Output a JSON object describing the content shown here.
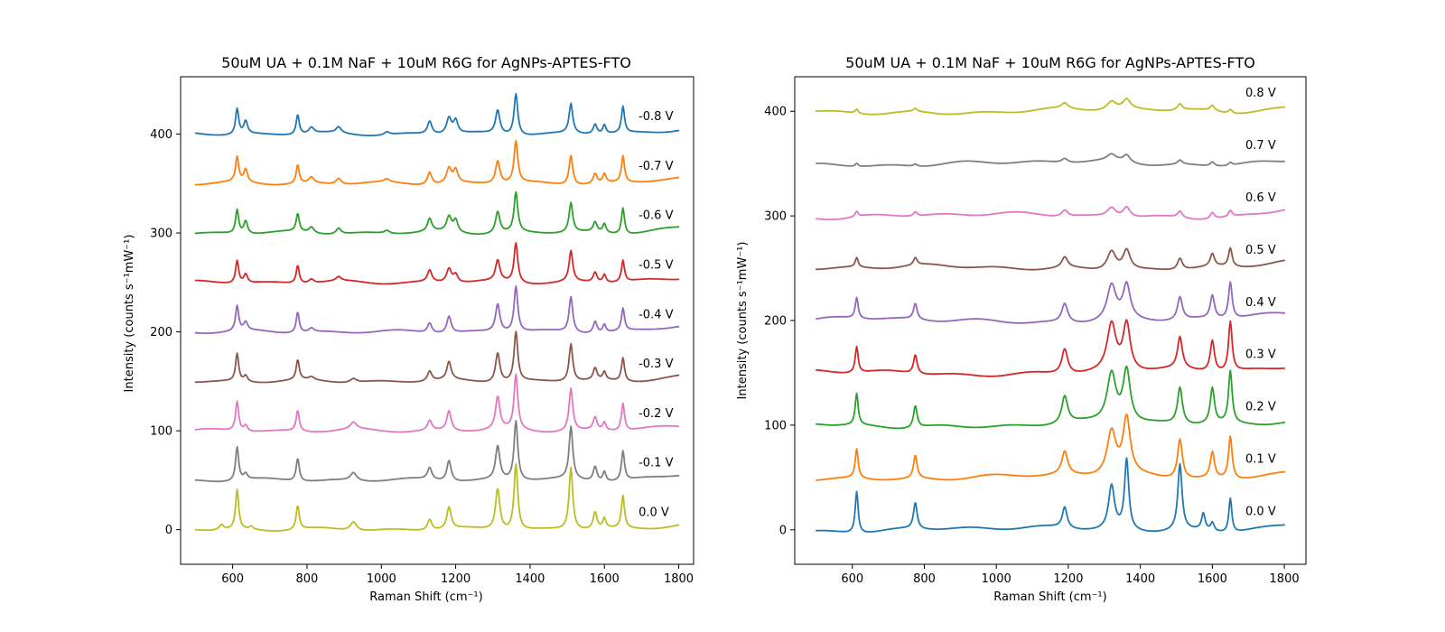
{
  "chart_data": [
    {
      "type": "line",
      "title": "50uM UA + 0.1M NaF + 10uM R6G for AgNPs-APTES-FTO",
      "xlabel": "Raman Shift (cm⁻¹)",
      "ylabel": "Intensity (counts s⁻¹mW⁻¹)",
      "xlim": [
        460,
        1840
      ],
      "ylim": [
        -35,
        458
      ],
      "xticks": [
        "600",
        "800",
        "1000",
        "1200",
        "1400",
        "1600",
        "1800"
      ],
      "yticks": [
        "0",
        "100",
        "200",
        "300",
        "400"
      ],
      "grid": false,
      "series": [
        {
          "name": "-0.8 V",
          "offset": 400,
          "color": "#1f77b4",
          "peaks": [
            [
              612,
              26,
              5
            ],
            [
              635,
              13,
              6
            ],
            [
              775,
              20,
              5
            ],
            [
              812,
              6,
              8
            ],
            [
              885,
              6,
              8
            ],
            [
              1015,
              3,
              8
            ],
            [
              1130,
              13,
              7
            ],
            [
              1182,
              16,
              8
            ],
            [
              1200,
              13,
              7
            ],
            [
              1313,
              24,
              7
            ],
            [
              1362,
              42,
              6
            ],
            [
              1510,
              30,
              6
            ],
            [
              1575,
              10,
              6
            ],
            [
              1600,
              9,
              5
            ],
            [
              1650,
              27,
              5
            ]
          ]
        },
        {
          "name": "-0.7 V",
          "offset": 350,
          "color": "#ff7f0e",
          "peaks": [
            [
              612,
              25,
              5
            ],
            [
              635,
              13,
              6
            ],
            [
              775,
              19,
              5
            ],
            [
              812,
              6,
              8
            ],
            [
              885,
              6,
              8
            ],
            [
              1015,
              3,
              8
            ],
            [
              1130,
              13,
              7
            ],
            [
              1182,
              15,
              8
            ],
            [
              1200,
              13,
              7
            ],
            [
              1313,
              23,
              7
            ],
            [
              1362,
              42,
              6
            ],
            [
              1510,
              30,
              6
            ],
            [
              1575,
              10,
              6
            ],
            [
              1600,
              9,
              5
            ],
            [
              1650,
              27,
              5
            ]
          ]
        },
        {
          "name": "-0.6 V",
          "offset": 300,
          "color": "#2ca02c",
          "peaks": [
            [
              612,
              24,
              5
            ],
            [
              635,
              13,
              6
            ],
            [
              775,
              18,
              5
            ],
            [
              812,
              6,
              8
            ],
            [
              885,
              6,
              8
            ],
            [
              1015,
              3,
              8
            ],
            [
              1130,
              13,
              7
            ],
            [
              1182,
              15,
              8
            ],
            [
              1200,
              12,
              7
            ],
            [
              1313,
              22,
              7
            ],
            [
              1362,
              40,
              6
            ],
            [
              1510,
              30,
              6
            ],
            [
              1575,
              10,
              6
            ],
            [
              1600,
              9,
              5
            ],
            [
              1650,
              27,
              5
            ]
          ]
        },
        {
          "name": "-0.5 V",
          "offset": 250,
          "color": "#d62728",
          "peaks": [
            [
              612,
              23,
              5
            ],
            [
              635,
              9,
              6
            ],
            [
              775,
              18,
              5
            ],
            [
              812,
              4,
              8
            ],
            [
              885,
              4,
              8
            ],
            [
              1130,
              12,
              7
            ],
            [
              1182,
              14,
              8
            ],
            [
              1200,
              8,
              7
            ],
            [
              1313,
              21,
              7
            ],
            [
              1362,
              40,
              6
            ],
            [
              1510,
              31,
              6
            ],
            [
              1575,
              10,
              6
            ],
            [
              1600,
              8,
              5
            ],
            [
              1650,
              22,
              5
            ]
          ]
        },
        {
          "name": "-0.4 V",
          "offset": 200,
          "color": "#9467bd",
          "peaks": [
            [
              612,
              25,
              5
            ],
            [
              635,
              8,
              6
            ],
            [
              775,
              21,
              5
            ],
            [
              812,
              4,
              8
            ],
            [
              1130,
              10,
              7
            ],
            [
              1182,
              17,
              7
            ],
            [
              1313,
              28,
              7
            ],
            [
              1362,
              46,
              6
            ],
            [
              1510,
              36,
              6
            ],
            [
              1575,
              12,
              6
            ],
            [
              1600,
              8,
              5
            ],
            [
              1650,
              23,
              5
            ]
          ]
        },
        {
          "name": "-0.3 V",
          "offset": 150,
          "color": "#8c564b",
          "peaks": [
            [
              612,
              28,
              5
            ],
            [
              635,
              6,
              6
            ],
            [
              775,
              20,
              5
            ],
            [
              812,
              3,
              8
            ],
            [
              925,
              4,
              10
            ],
            [
              1130,
              10,
              7
            ],
            [
              1182,
              18,
              7
            ],
            [
              1313,
              30,
              7
            ],
            [
              1362,
              50,
              6
            ],
            [
              1510,
              38,
              6
            ],
            [
              1575,
              12,
              6
            ],
            [
              1600,
              8,
              5
            ],
            [
              1650,
              24,
              5
            ]
          ]
        },
        {
          "name": "-0.2 V",
          "offset": 100,
          "color": "#e377c2",
          "peaks": [
            [
              612,
              30,
              5
            ],
            [
              635,
              6,
              6
            ],
            [
              775,
              21,
              5
            ],
            [
              925,
              7,
              10
            ],
            [
              1130,
              10,
              7
            ],
            [
              1182,
              20,
              7
            ],
            [
              1313,
              33,
              7
            ],
            [
              1362,
              55,
              6
            ],
            [
              1510,
              43,
              6
            ],
            [
              1575,
              13,
              6
            ],
            [
              1600,
              8,
              5
            ],
            [
              1650,
              28,
              5
            ]
          ]
        },
        {
          "name": "-0.1 V",
          "offset": 50,
          "color": "#7f7f7f",
          "peaks": [
            [
              612,
              34,
              5
            ],
            [
              635,
              6,
              6
            ],
            [
              775,
              23,
              5
            ],
            [
              925,
              8,
              10
            ],
            [
              1130,
              12,
              7
            ],
            [
              1182,
              21,
              7
            ],
            [
              1313,
              34,
              7
            ],
            [
              1362,
              60,
              6
            ],
            [
              1510,
              53,
              6
            ],
            [
              1575,
              15,
              6
            ],
            [
              1600,
              10,
              5
            ],
            [
              1650,
              30,
              5
            ]
          ]
        },
        {
          "name": "0.0 V",
          "offset": 0,
          "color": "#bcbd22",
          "peaks": [
            [
              570,
              5,
              7
            ],
            [
              612,
              40,
              5
            ],
            [
              650,
              3,
              6
            ],
            [
              775,
              24,
              5
            ],
            [
              925,
              9,
              10
            ],
            [
              1130,
              11,
              7
            ],
            [
              1182,
              22,
              7
            ],
            [
              1313,
              42,
              7
            ],
            [
              1362,
              67,
              6
            ],
            [
              1510,
              63,
              6
            ],
            [
              1575,
              17,
              6
            ],
            [
              1600,
              10,
              5
            ],
            [
              1650,
              33,
              5
            ]
          ]
        }
      ]
    },
    {
      "type": "line",
      "title": "50uM UA + 0.1M NaF + 10uM R6G for AgNPs-APTES-FTO",
      "xlabel": "Raman Shift (cm⁻¹)",
      "ylabel": "Intensity (counts s⁻¹mW⁻¹)",
      "xlim": [
        440,
        1860
      ],
      "ylim": [
        -33,
        433
      ],
      "xticks": [
        "600",
        "800",
        "1000",
        "1200",
        "1400",
        "1600",
        "1800"
      ],
      "yticks": [
        "0",
        "100",
        "200",
        "300",
        "400"
      ],
      "grid": false,
      "series": [
        {
          "name": "0.8 V",
          "offset": 400,
          "color": "#bcbd22",
          "peaks": [
            [
              612,
              4,
              5
            ],
            [
              775,
              3,
              6
            ],
            [
              1190,
              5,
              10
            ],
            [
              1320,
              8,
              15
            ],
            [
              1362,
              9,
              12
            ],
            [
              1510,
              6,
              8
            ],
            [
              1600,
              5,
              7
            ],
            [
              1650,
              4,
              6
            ]
          ]
        },
        {
          "name": "0.7 V",
          "offset": 350,
          "color": "#7f7f7f",
          "peaks": [
            [
              612,
              3,
              5
            ],
            [
              775,
              2,
              6
            ],
            [
              1190,
              4,
              10
            ],
            [
              1320,
              6,
              15
            ],
            [
              1362,
              7,
              12
            ],
            [
              1510,
              4,
              8
            ],
            [
              1600,
              4,
              7
            ],
            [
              1650,
              3,
              6
            ]
          ]
        },
        {
          "name": "0.6 V",
          "offset": 300,
          "color": "#e377c2",
          "peaks": [
            [
              612,
              5,
              5
            ],
            [
              775,
              4,
              6
            ],
            [
              1190,
              6,
              10
            ],
            [
              1320,
              9,
              15
            ],
            [
              1362,
              10,
              12
            ],
            [
              1510,
              6,
              8
            ],
            [
              1600,
              6,
              7
            ],
            [
              1650,
              6,
              6
            ]
          ]
        },
        {
          "name": "0.5 V",
          "offset": 250,
          "color": "#8c564b",
          "peaks": [
            [
              612,
              9,
              5
            ],
            [
              775,
              7,
              6
            ],
            [
              1190,
              10,
              10
            ],
            [
              1320,
              19,
              15
            ],
            [
              1362,
              19,
              12
            ],
            [
              1510,
              11,
              8
            ],
            [
              1600,
              12,
              7
            ],
            [
              1650,
              18,
              6
            ]
          ]
        },
        {
          "name": "0.4 V",
          "offset": 200,
          "color": "#9467bd",
          "peaks": [
            [
              612,
              20,
              5
            ],
            [
              775,
              15,
              6
            ],
            [
              1190,
              18,
              10
            ],
            [
              1320,
              33,
              15
            ],
            [
              1362,
              32,
              12
            ],
            [
              1510,
              22,
              8
            ],
            [
              1600,
              22,
              7
            ],
            [
              1650,
              35,
              6
            ]
          ]
        },
        {
          "name": "0.3 V",
          "offset": 150,
          "color": "#d62728",
          "peaks": [
            [
              612,
              25,
              5
            ],
            [
              775,
              18,
              6
            ],
            [
              1190,
              24,
              10
            ],
            [
              1320,
              45,
              15
            ],
            [
              1362,
              45,
              12
            ],
            [
              1510,
              30,
              8
            ],
            [
              1600,
              30,
              7
            ],
            [
              1650,
              48,
              6
            ]
          ]
        },
        {
          "name": "0.2 V",
          "offset": 100,
          "color": "#2ca02c",
          "peaks": [
            [
              612,
              30,
              5
            ],
            [
              775,
              21,
              6
            ],
            [
              1190,
              26,
              10
            ],
            [
              1320,
              47,
              15
            ],
            [
              1362,
              50,
              12
            ],
            [
              1510,
              35,
              8
            ],
            [
              1600,
              34,
              7
            ],
            [
              1650,
              50,
              6
            ]
          ]
        },
        {
          "name": "0.1 V",
          "offset": 50,
          "color": "#ff7f0e",
          "peaks": [
            [
              612,
              28,
              5
            ],
            [
              775,
              22,
              6
            ],
            [
              1190,
              22,
              10
            ],
            [
              1320,
              42,
              15
            ],
            [
              1362,
              53,
              12
            ],
            [
              1510,
              38,
              8
            ],
            [
              1600,
              25,
              7
            ],
            [
              1650,
              41,
              6
            ]
          ]
        },
        {
          "name": "0.0 V",
          "offset": 0,
          "color": "#1f77b4",
          "peaks": [
            [
              612,
              40,
              5
            ],
            [
              775,
              25,
              6
            ],
            [
              1190,
              20,
              8
            ],
            [
              1320,
              42,
              10
            ],
            [
              1362,
              67,
              7
            ],
            [
              1510,
              63,
              7
            ],
            [
              1575,
              16,
              6
            ],
            [
              1600,
              8,
              6
            ],
            [
              1650,
              33,
              5
            ]
          ]
        }
      ]
    }
  ]
}
